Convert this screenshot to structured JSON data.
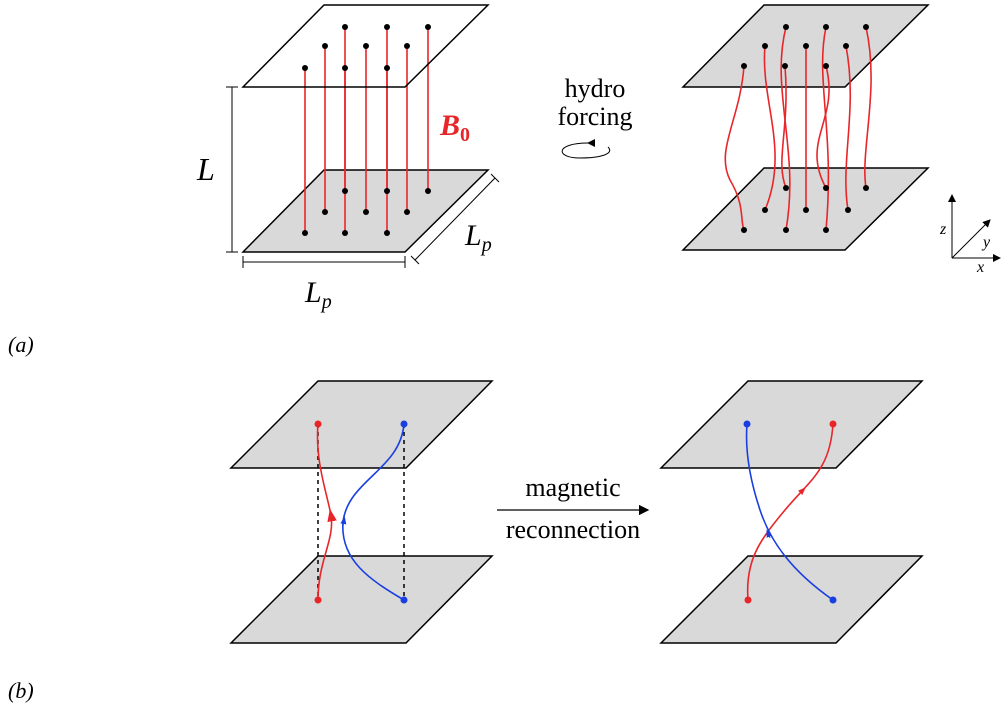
{
  "panel_a": {
    "label": "(a)",
    "height_label": "L",
    "field_label": "B",
    "field_subscript": "0",
    "width_label": "L",
    "width_subscript": "p",
    "depth_label": "L",
    "depth_subscript": "p",
    "process": [
      "hydro",
      "forcing"
    ],
    "axes": {
      "z": "z",
      "y": "y",
      "x": "x"
    }
  },
  "panel_b": {
    "label": "(b)",
    "process": [
      "magnetic",
      "reconnection"
    ]
  }
}
